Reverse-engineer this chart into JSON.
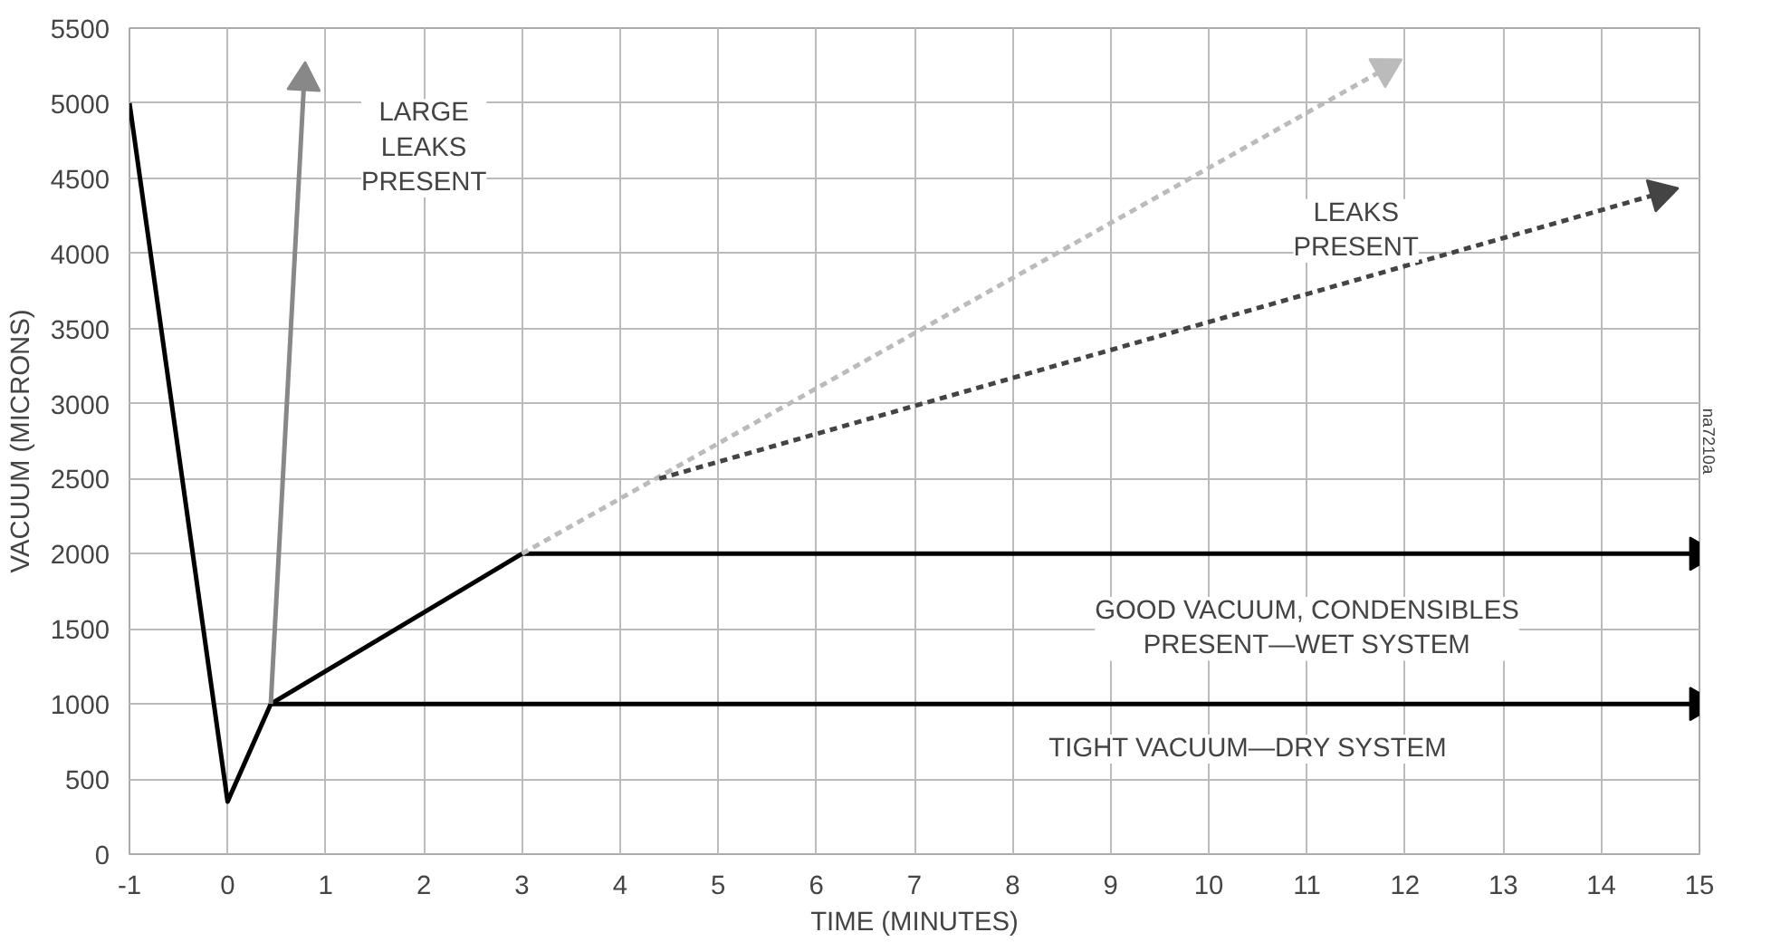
{
  "chart_data": {
    "type": "line",
    "xlabel": "TIME (MINUTES)",
    "ylabel": "VACUUM (MICRONS)",
    "xlim": [
      -1,
      15
    ],
    "xticks": [
      -1,
      0,
      1,
      2,
      3,
      4,
      5,
      6,
      7,
      8,
      9,
      10,
      11,
      12,
      13,
      14,
      15
    ],
    "ylim": [
      0,
      5500
    ],
    "yticks": [
      0,
      500,
      1000,
      1500,
      2000,
      2500,
      3000,
      3500,
      4000,
      4500,
      5000,
      5500
    ],
    "grid": true,
    "series": [
      {
        "color": "#000000",
        "line_style": "solid",
        "x": [
          -1,
          0,
          0.44,
          3,
          15
        ],
        "values": [
          5000,
          350,
          1000,
          2000,
          2000
        ]
      },
      {
        "color": "#000000",
        "line_style": "solid",
        "x": [
          0.44,
          15
        ],
        "values": [
          1000,
          1000
        ]
      },
      {
        "color": "#888888",
        "line_style": "solid",
        "x": [
          0.44,
          0.78
        ],
        "values": [
          1000,
          5150
        ]
      },
      {
        "color": "#bbbbbb",
        "line_style": "dashed",
        "x": [
          3,
          11.8
        ],
        "values": [
          2000,
          5230
        ]
      },
      {
        "color": "#444444",
        "line_style": "dashed",
        "x": [
          4.4,
          14.6
        ],
        "values": [
          2500,
          4400
        ]
      }
    ],
    "annotations": [
      "LARGE\nLEAKS\nPRESENT",
      "LEAKS\nPRESENT",
      "GOOD VACUUM, CONDENSIBLES\nPRESENT—WET SYSTEM",
      "TIGHT VACUUM—DRY SYSTEM",
      "na7210a"
    ]
  }
}
